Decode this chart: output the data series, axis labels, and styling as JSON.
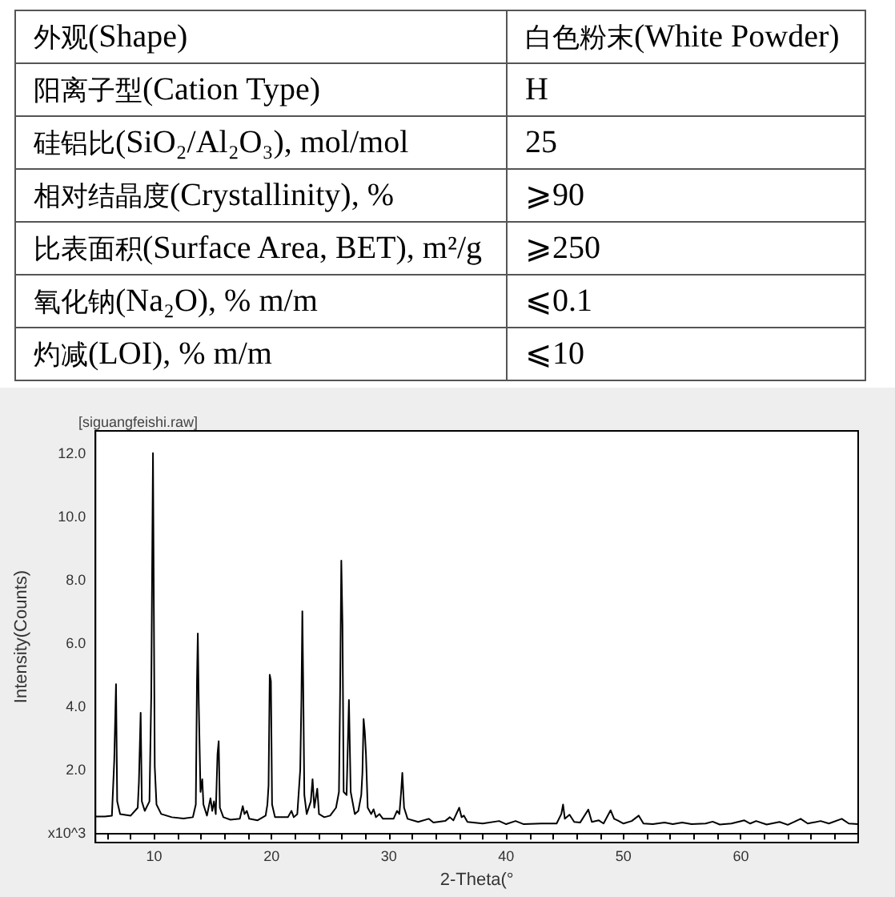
{
  "chart_data": [
    {
      "type": "other",
      "annotations": [
        "外观(Shape)",
        "白色粉末(White Powder)",
        "阳离子型(Cation Type)",
        "H",
        "硅铝比(SiO₂/Al₂O₃), mol/mol",
        "25",
        "相对结晶度(Crystallinity), %",
        "⩾90",
        "比表面积(Surface Area, BET), m²/g",
        "⩾250",
        "氧化钠(Na₂O), % m/m",
        "⩽0.1",
        "灼减(LOI), % m/m",
        "⩽10"
      ]
    },
    {
      "type": "line",
      "title": "[siguangfeishi.raw]",
      "xlabel": "2-Theta(°",
      "ylabel": "Intensity(Counts)",
      "color": "#000000",
      "marker": "none",
      "line_style": "solid",
      "x": [
        5.0,
        5.8,
        6.4,
        6.6,
        6.75,
        6.85,
        7.1,
        8.0,
        8.6,
        8.7,
        8.85,
        8.95,
        9.2,
        9.6,
        9.75,
        9.9,
        10.05,
        10.2,
        10.6,
        11.5,
        12.5,
        13.3,
        13.55,
        13.65,
        13.72,
        13.8,
        13.95,
        14.1,
        14.2,
        14.5,
        14.8,
        14.95,
        15.1,
        15.25,
        15.4,
        15.5,
        15.6,
        15.9,
        16.5,
        17.3,
        17.55,
        17.7,
        17.9,
        18.1,
        18.8,
        19.5,
        19.65,
        19.75,
        19.85,
        19.95,
        20.05,
        20.3,
        21.4,
        21.7,
        21.9,
        22.2,
        22.45,
        22.55,
        22.63,
        22.7,
        22.8,
        23.0,
        23.35,
        23.5,
        23.65,
        23.9,
        24.05,
        24.5,
        25.0,
        25.5,
        25.75,
        25.85,
        25.95,
        26.05,
        26.15,
        26.4,
        26.6,
        26.75,
        27.1,
        27.4,
        27.65,
        27.75,
        27.85,
        27.95,
        28.05,
        28.2,
        28.5,
        28.7,
        28.9,
        29.2,
        29.5,
        30.4,
        30.7,
        30.9,
        31.05,
        31.15,
        31.3,
        31.6,
        32.5,
        33.4,
        33.8,
        34.8,
        35.2,
        35.5,
        36.0,
        36.2,
        36.4,
        36.7,
        38.0,
        39.4,
        40.0,
        40.8,
        41.5,
        43.0,
        44.3,
        44.7,
        44.85,
        45.0,
        45.4,
        45.8,
        46.3,
        47.0,
        47.3,
        47.9,
        48.3,
        48.9,
        49.2,
        49.5,
        50.0,
        50.7,
        51.3,
        51.7,
        52.5,
        53.5,
        54.2,
        55.0,
        55.8,
        57.0,
        57.6,
        58.2,
        59.2,
        60.3,
        60.8,
        61.3,
        62.2,
        63.3,
        64.0,
        65.1,
        65.7,
        66.8,
        67.5,
        68.6,
        69.2,
        70.0
      ],
      "values": [
        0.52,
        0.52,
        0.55,
        2.3,
        4.7,
        1.0,
        0.6,
        0.55,
        0.8,
        1.6,
        3.8,
        1.0,
        0.7,
        1.0,
        4.3,
        12.0,
        2.1,
        0.9,
        0.6,
        0.5,
        0.46,
        0.5,
        0.9,
        4.8,
        6.3,
        4.1,
        1.3,
        1.7,
        0.9,
        0.55,
        1.1,
        0.7,
        1.0,
        0.6,
        2.5,
        2.9,
        0.8,
        0.5,
        0.42,
        0.45,
        0.85,
        0.6,
        0.7,
        0.45,
        0.4,
        0.55,
        0.9,
        1.5,
        5.0,
        4.8,
        0.9,
        0.5,
        0.5,
        0.7,
        0.5,
        0.6,
        2.0,
        4.2,
        7.0,
        4.8,
        1.2,
        0.6,
        1.0,
        1.7,
        0.8,
        1.4,
        0.6,
        0.5,
        0.55,
        0.8,
        1.3,
        4.5,
        8.6,
        6.6,
        1.3,
        1.2,
        4.2,
        1.3,
        0.6,
        0.7,
        1.2,
        1.9,
        3.6,
        3.2,
        2.5,
        0.8,
        0.6,
        0.75,
        0.5,
        0.6,
        0.45,
        0.45,
        0.7,
        0.6,
        1.3,
        1.9,
        0.8,
        0.45,
        0.35,
        0.45,
        0.33,
        0.38,
        0.5,
        0.4,
        0.8,
        0.5,
        0.55,
        0.35,
        0.3,
        0.38,
        0.28,
        0.38,
        0.28,
        0.3,
        0.3,
        0.6,
        0.9,
        0.45,
        0.58,
        0.35,
        0.33,
        0.74,
        0.35,
        0.4,
        0.3,
        0.72,
        0.45,
        0.4,
        0.3,
        0.38,
        0.55,
        0.3,
        0.28,
        0.33,
        0.28,
        0.33,
        0.28,
        0.3,
        0.36,
        0.27,
        0.3,
        0.4,
        0.3,
        0.38,
        0.27,
        0.35,
        0.26,
        0.45,
        0.3,
        0.38,
        0.3,
        0.45,
        0.3,
        0.28
      ],
      "xlim": [
        5,
        70
      ],
      "xticks": [
        {
          "value": 6,
          "label": null
        },
        {
          "value": 8,
          "label": null
        },
        10,
        {
          "value": 12,
          "label": null
        },
        {
          "value": 14,
          "label": null
        },
        {
          "value": 16,
          "label": null
        },
        {
          "value": 18,
          "label": null
        },
        20,
        {
          "value": 22,
          "label": null
        },
        {
          "value": 24,
          "label": null
        },
        {
          "value": 26,
          "label": null
        },
        {
          "value": 28,
          "label": null
        },
        30,
        {
          "value": 32,
          "label": null
        },
        {
          "value": 34,
          "label": null
        },
        {
          "value": 36,
          "label": null
        },
        {
          "value": 38,
          "label": null
        },
        40,
        {
          "value": 42,
          "label": null
        },
        {
          "value": 44,
          "label": null
        },
        {
          "value": 46,
          "label": null
        },
        {
          "value": 48,
          "label": null
        },
        50,
        {
          "value": 52,
          "label": null
        },
        {
          "value": 54,
          "label": null
        },
        {
          "value": 56,
          "label": null
        },
        {
          "value": 58,
          "label": null
        },
        60,
        {
          "value": 62,
          "label": null
        },
        {
          "value": 64,
          "label": null
        },
        {
          "value": 66,
          "label": null
        },
        {
          "value": 68,
          "label": null
        }
      ],
      "ylim": [
        -0.3,
        12.7
      ],
      "yticks": [
        {
          "value": 0,
          "label": "x10^3"
        },
        {
          "value": 2,
          "label": "2.0"
        },
        {
          "value": 4,
          "label": "4.0"
        },
        {
          "value": 6,
          "label": "6.0"
        },
        {
          "value": 8,
          "label": "8.0"
        },
        {
          "value": 10,
          "label": "10.0"
        },
        {
          "value": 12,
          "label": "12.0"
        }
      ]
    }
  ]
}
